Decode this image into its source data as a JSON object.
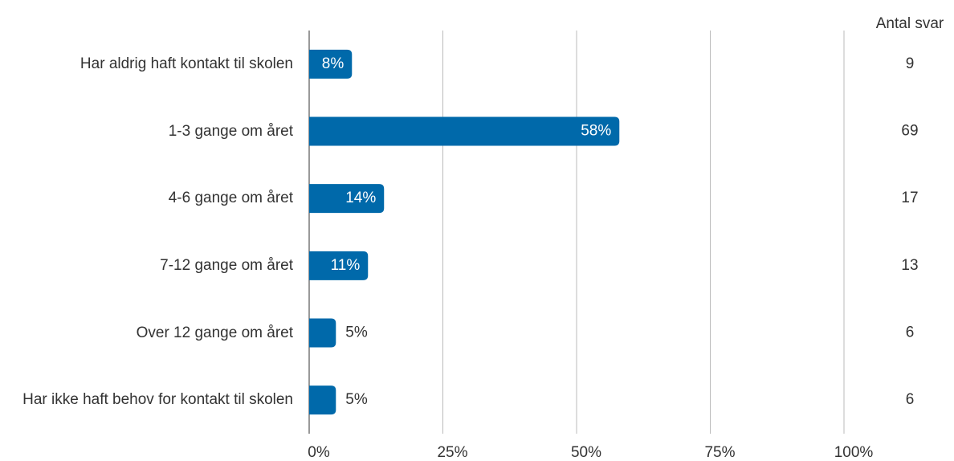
{
  "chart_data": {
    "type": "bar",
    "orientation": "horizontal",
    "categories": [
      "Har aldrig haft kontakt til skolen",
      "1-3 gange om året",
      "4-6 gange om året",
      "7-12 gange om året",
      "Over 12 gange om året",
      "Har ikke haft behov for kontakt til skolen"
    ],
    "values": [
      8,
      58,
      14,
      11,
      5,
      5
    ],
    "value_labels": [
      "8%",
      "58%",
      "14%",
      "11%",
      "5%",
      "5%"
    ],
    "color": "#0069aa",
    "xlim": [
      0,
      100
    ],
    "xticks": [
      {
        "value": 0,
        "label": "0%"
      },
      {
        "value": 25,
        "label": "25%"
      },
      {
        "value": 50,
        "label": "50%"
      },
      {
        "value": 75,
        "label": "75%"
      },
      {
        "value": 100,
        "label": "100%"
      }
    ],
    "grid": true,
    "counts_title": "Antal svar",
    "counts": [
      9,
      69,
      17,
      13,
      6,
      6
    ]
  }
}
